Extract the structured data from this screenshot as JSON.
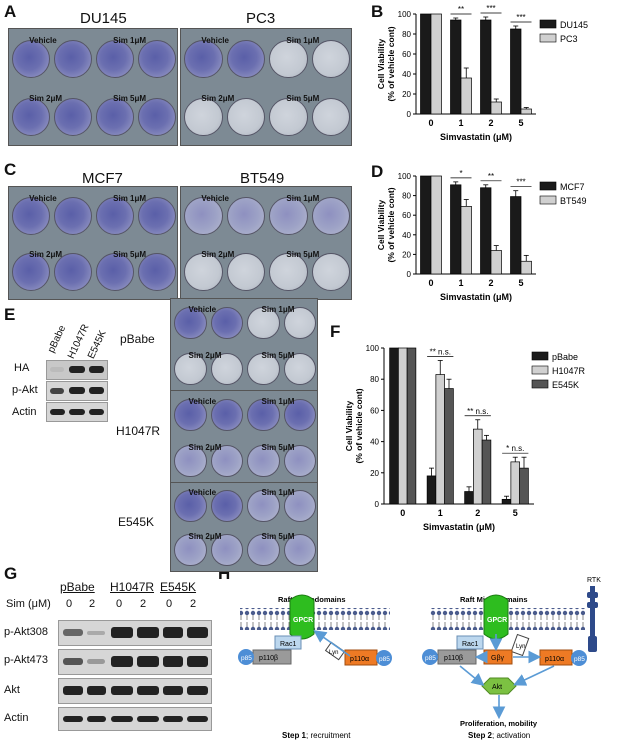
{
  "panels": {
    "A": {
      "letter": "A",
      "left_title": "DU145",
      "right_title": "PC3",
      "left_labels": [
        "Vehicle",
        "Sim 1μM",
        "Sim 2μM",
        "Sim 5μM"
      ],
      "right_labels": [
        "Vehicle",
        "Sim 1μM",
        "Sim 2μM",
        "Sim 5μM"
      ]
    },
    "B": {
      "letter": "B"
    },
    "C": {
      "letter": "C",
      "left_title": "MCF7",
      "right_title": "BT549",
      "left_labels": [
        "Vehicle",
        "Sim 1μM",
        "Sim 2μM",
        "Sim 5μM"
      ],
      "right_labels": [
        "Vehicle",
        "Sim 1μM",
        "Sim 2μM",
        "Sim 5μM"
      ]
    },
    "D": {
      "letter": "D"
    },
    "E": {
      "letter": "E",
      "lanes": [
        "pBabe",
        "H1047R",
        "E545K"
      ],
      "rows": [
        "HA",
        "p-Akt",
        "Actin"
      ],
      "plate_rows": [
        "pBabe",
        "H1047R",
        "E545K"
      ],
      "plate_labels": [
        "Vehicle",
        "Sim 1μM",
        "Sim 2μM",
        "Sim 5μM"
      ]
    },
    "F": {
      "letter": "F"
    },
    "G": {
      "letter": "G",
      "groups": [
        "pBabe",
        "H1047R",
        "E545K"
      ],
      "sim_label": "Sim (μM)",
      "doses": [
        "0",
        "2",
        "0",
        "2",
        "0",
        "2"
      ],
      "rows": [
        "p-Akt308",
        "p-Akt473",
        "Akt",
        "Actin"
      ]
    },
    "H": {
      "letter": "H",
      "raft1": "Raft Microdomains",
      "raft2": "Raft Microdomains",
      "rtk": "RTK",
      "gpcr": "GPCR",
      "rac1": "Rac1",
      "p110b": "p110β",
      "p85": "p85",
      "lyn": "Lyn",
      "p110a": "p110α",
      "gby": "Gβγ",
      "akt": "Akt",
      "outcome": "Proliferation, mobility",
      "step1_bold": "Step 1",
      "step1_rest": "; recruitment",
      "step2_bold": "Step 2",
      "step2_rest": "; activation"
    }
  },
  "chart_data": [
    {
      "panel": "B",
      "type": "bar",
      "categories": [
        "0",
        "1",
        "2",
        "5"
      ],
      "series": [
        {
          "name": "DU145",
          "values": [
            100,
            94,
            94,
            85
          ],
          "errors": [
            0,
            2,
            3,
            3
          ],
          "color": "#1a1a1a"
        },
        {
          "name": "PC3",
          "values": [
            100,
            36,
            12,
            5
          ],
          "errors": [
            0,
            10,
            3,
            1.5
          ],
          "color": "#d0d0d0"
        }
      ],
      "significance": [
        "",
        "**",
        "***",
        "***"
      ],
      "xlabel": "Simvastatin (μM)",
      "ylabel": "Cell Viability",
      "ylabel2": "(% of vehicle cont)",
      "ylim": [
        0,
        100
      ],
      "yticks": [
        0,
        20,
        40,
        60,
        80,
        100
      ],
      "legend": "right"
    },
    {
      "panel": "D",
      "type": "bar",
      "categories": [
        "0",
        "1",
        "2",
        "5"
      ],
      "series": [
        {
          "name": "MCF7",
          "values": [
            100,
            91,
            88,
            79
          ],
          "errors": [
            0,
            3,
            3,
            6
          ],
          "color": "#1a1a1a"
        },
        {
          "name": "BT549",
          "values": [
            100,
            69,
            24,
            13
          ],
          "errors": [
            0,
            7,
            5,
            6
          ],
          "color": "#d0d0d0"
        }
      ],
      "significance": [
        "",
        "*",
        "**",
        "***"
      ],
      "xlabel": "Simvastatin (μM)",
      "ylabel": "Cell Viability",
      "ylabel2": "(% of vehicle cont)",
      "ylim": [
        0,
        100
      ],
      "yticks": [
        0,
        20,
        40,
        60,
        80,
        100
      ],
      "legend": "right"
    },
    {
      "panel": "F",
      "type": "bar",
      "categories": [
        "0",
        "1",
        "2",
        "5"
      ],
      "series": [
        {
          "name": "pBabe",
          "values": [
            100,
            18,
            8,
            3
          ],
          "errors": [
            0,
            5,
            3,
            2
          ],
          "color": "#1a1a1a"
        },
        {
          "name": "H1047R",
          "values": [
            100,
            83,
            48,
            27
          ],
          "errors": [
            0,
            9,
            6,
            3
          ],
          "color": "#d0d0d0"
        },
        {
          "name": "E545K",
          "values": [
            100,
            74,
            41,
            23
          ],
          "errors": [
            0,
            6,
            3,
            7
          ],
          "color": "#555555"
        }
      ],
      "significance": [
        "",
        "** n.s.",
        "** n.s.",
        "* n.s."
      ],
      "xlabel": "Simvastatin (μM)",
      "ylabel": "Cell Viability",
      "ylabel2": "(% of vehicle cont)",
      "ylim": [
        0,
        100
      ],
      "yticks": [
        0,
        20,
        40,
        60,
        80,
        100
      ],
      "legend": "right"
    }
  ]
}
